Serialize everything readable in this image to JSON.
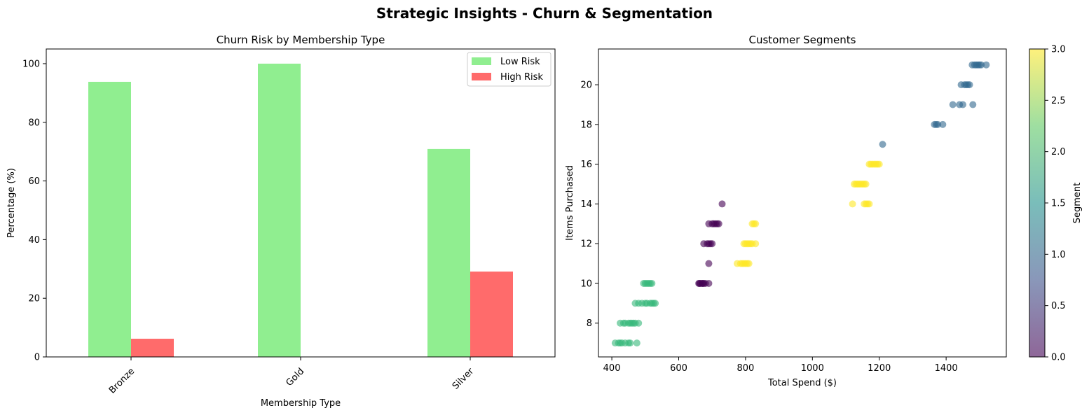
{
  "suptitle": "Strategic Insights - Churn & Segmentation",
  "chart_data": [
    {
      "type": "bar",
      "title": "Churn Risk by Membership Type",
      "xlabel": "Membership Type",
      "ylabel": "Percentage (%)",
      "categories": [
        "Bronze",
        "Gold",
        "Silver"
      ],
      "ylim": [
        0,
        105
      ],
      "yticks": [
        0,
        20,
        40,
        60,
        80,
        100
      ],
      "series": [
        {
          "name": "Low Risk",
          "color": "#90ee90",
          "values": [
            93.8,
            100,
            70.9
          ]
        },
        {
          "name": "High Risk",
          "color": "#ff6b6b",
          "values": [
            6.2,
            0,
            29.1
          ]
        }
      ],
      "legend_position": "top-right"
    },
    {
      "type": "scatter",
      "title": "Customer Segments",
      "xlabel": "Total Spend ($)",
      "ylabel": "Items Purchased",
      "xlim": [
        360,
        1580
      ],
      "ylim": [
        6.3,
        21.8
      ],
      "xticks": [
        400,
        600,
        800,
        1000,
        1200,
        1400
      ],
      "yticks": [
        8,
        10,
        12,
        14,
        16,
        18,
        20
      ],
      "colorbar": {
        "label": "Segment",
        "ticks": [
          "0.0",
          "0.5",
          "1.0",
          "1.5",
          "2.0",
          "2.5",
          "3.0"
        ],
        "colormap": "viridis"
      },
      "segments": [
        {
          "segment": 0,
          "color": "#440154",
          "points": [
            [
              660,
              10
            ],
            [
              665,
              10
            ],
            [
              670,
              10
            ],
            [
              675,
              10
            ],
            [
              680,
              10
            ],
            [
              690,
              10
            ],
            [
              662,
              10
            ],
            [
              672,
              10
            ],
            [
              685,
              12
            ],
            [
              690,
              12
            ],
            [
              695,
              12
            ],
            [
              700,
              12
            ],
            [
              675,
              12
            ],
            [
              690,
              11
            ],
            [
              690,
              13
            ],
            [
              700,
              13
            ],
            [
              705,
              13
            ],
            [
              710,
              13
            ],
            [
              715,
              13
            ],
            [
              720,
              13
            ],
            [
              730,
              14
            ]
          ]
        },
        {
          "segment": 1,
          "color": "#31688e",
          "points": [
            [
              1365,
              18
            ],
            [
              1370,
              18
            ],
            [
              1375,
              18
            ],
            [
              1390,
              18
            ],
            [
              1210,
              17
            ],
            [
              1420,
              19
            ],
            [
              1440,
              19
            ],
            [
              1450,
              19
            ],
            [
              1480,
              19
            ],
            [
              1445,
              20
            ],
            [
              1455,
              20
            ],
            [
              1460,
              20
            ],
            [
              1465,
              20
            ],
            [
              1470,
              20
            ],
            [
              1478,
              21
            ],
            [
              1485,
              21
            ],
            [
              1490,
              21
            ],
            [
              1495,
              21
            ],
            [
              1500,
              21
            ],
            [
              1505,
              21
            ],
            [
              1520,
              21
            ]
          ]
        },
        {
          "segment": 2,
          "color": "#35b779",
          "points": [
            [
              410,
              7
            ],
            [
              420,
              7
            ],
            [
              425,
              7
            ],
            [
              430,
              7
            ],
            [
              440,
              7
            ],
            [
              450,
              7
            ],
            [
              455,
              7
            ],
            [
              475,
              7
            ],
            [
              425,
              8
            ],
            [
              435,
              8
            ],
            [
              440,
              8
            ],
            [
              450,
              8
            ],
            [
              455,
              8
            ],
            [
              460,
              8
            ],
            [
              465,
              8
            ],
            [
              470,
              8
            ],
            [
              480,
              8
            ],
            [
              470,
              9
            ],
            [
              480,
              9
            ],
            [
              490,
              9
            ],
            [
              500,
              9
            ],
            [
              505,
              9
            ],
            [
              515,
              9
            ],
            [
              520,
              9
            ],
            [
              525,
              9
            ],
            [
              530,
              9
            ],
            [
              495,
              10
            ],
            [
              500,
              10
            ],
            [
              505,
              10
            ],
            [
              510,
              10
            ],
            [
              515,
              10
            ],
            [
              520,
              10
            ]
          ]
        },
        {
          "segment": 3,
          "color": "#fde725",
          "points": [
            [
              775,
              11
            ],
            [
              785,
              11
            ],
            [
              790,
              11
            ],
            [
              795,
              11
            ],
            [
              800,
              11
            ],
            [
              805,
              11
            ],
            [
              810,
              11
            ],
            [
              795,
              12
            ],
            [
              800,
              12
            ],
            [
              805,
              12
            ],
            [
              810,
              12
            ],
            [
              815,
              12
            ],
            [
              820,
              12
            ],
            [
              830,
              12
            ],
            [
              820,
              13
            ],
            [
              825,
              13
            ],
            [
              830,
              13
            ],
            [
              1120,
              14
            ],
            [
              1155,
              14
            ],
            [
              1160,
              14
            ],
            [
              1165,
              14
            ],
            [
              1170,
              14
            ],
            [
              1125,
              15
            ],
            [
              1130,
              15
            ],
            [
              1135,
              15
            ],
            [
              1140,
              15
            ],
            [
              1145,
              15
            ],
            [
              1150,
              15
            ],
            [
              1155,
              15
            ],
            [
              1160,
              15
            ],
            [
              1170,
              16
            ],
            [
              1175,
              16
            ],
            [
              1180,
              16
            ],
            [
              1185,
              16
            ],
            [
              1190,
              16
            ],
            [
              1195,
              16
            ],
            [
              1200,
              16
            ]
          ]
        }
      ]
    }
  ]
}
